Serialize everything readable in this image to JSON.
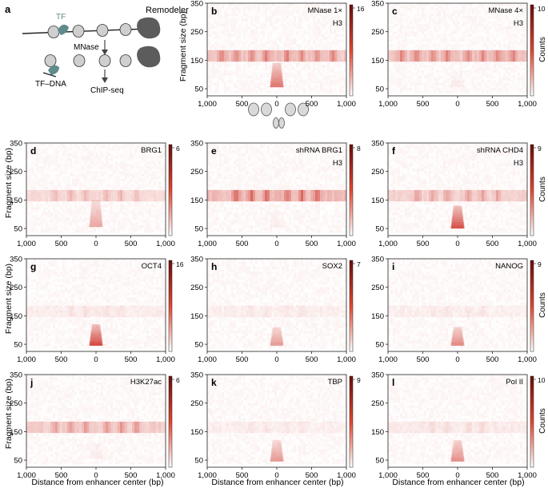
{
  "figure": {
    "x_axis_label": "Distance from enhancer center (bp)",
    "y_axis_label": "Fragment size (bp)",
    "colorbar_label": "Counts",
    "heat_color": "#cc2a1e",
    "dark_color": "#6b0d0a",
    "schematic_fill": "#d9d9d9",
    "tf_color": "#5f8b8b"
  },
  "schematic": {
    "panel_label": "a",
    "tf_label": "TF",
    "remodeler_label": "Remodeler",
    "mnase_label": "MNase",
    "tf_dna_label": "TF–DNA",
    "chipseq_label": "ChIP-seq"
  },
  "chart_data": [
    {
      "id": "b",
      "type": "heatmap",
      "panel_label": "b",
      "title": "MNase 1×",
      "subtitle": "H3",
      "colorbar_max": "16",
      "show_counts_label": false,
      "xlim": [
        -1000,
        1000
      ],
      "ylim": [
        25,
        350
      ],
      "xticks": [
        "1,000",
        "500",
        "0",
        "500",
        "1,000"
      ],
      "yticks": [
        "50",
        "150",
        "250",
        "350"
      ],
      "band_intensity": 0.55,
      "nucleosome_positions": [
        -800,
        -580,
        -360,
        -150,
        150,
        360,
        580,
        800
      ],
      "center_intensity": 0.75,
      "center_size_range": [
        55,
        140
      ]
    },
    {
      "id": "c",
      "type": "heatmap",
      "panel_label": "c",
      "title": "MNase 4×",
      "subtitle": "H3",
      "colorbar_max": "10",
      "show_counts_label": true,
      "xlim": [
        -1000,
        1000
      ],
      "ylim": [
        25,
        350
      ],
      "xticks": [
        "1,000",
        "500",
        "0",
        "500",
        "1,000"
      ],
      "yticks": [
        "50",
        "150",
        "250",
        "350"
      ],
      "band_intensity": 0.55,
      "nucleosome_positions": [
        -800,
        -580,
        -360,
        -150,
        150,
        360,
        580,
        800
      ],
      "center_intensity": 0.08,
      "center_size_range": [
        55,
        110
      ]
    },
    {
      "id": "d",
      "type": "heatmap",
      "panel_label": "d",
      "title": "BRG1",
      "subtitle": "",
      "colorbar_max": "6",
      "show_counts_label": false,
      "xlim": [
        -1000,
        1000
      ],
      "ylim": [
        25,
        350
      ],
      "xticks": [
        "1,000",
        "500",
        "0",
        "500",
        "1,000"
      ],
      "yticks": [
        "50",
        "150",
        "250",
        "350"
      ],
      "band_intensity": 0.3,
      "nucleosome_positions": [
        -580,
        -360,
        -150,
        150,
        360,
        580
      ],
      "center_intensity": 0.45,
      "center_size_range": [
        55,
        150
      ]
    },
    {
      "id": "e",
      "type": "heatmap",
      "panel_label": "e",
      "title": "shRNA BRG1",
      "subtitle": "H3",
      "colorbar_max": "8",
      "show_counts_label": false,
      "xlim": [
        -1000,
        1000
      ],
      "ylim": [
        25,
        350
      ],
      "xticks": [
        "1,000",
        "500",
        "0",
        "500",
        "1,000"
      ],
      "yticks": [
        "50",
        "150",
        "250",
        "350"
      ],
      "band_intensity": 0.65,
      "nucleosome_positions": [
        -580,
        -360,
        -150,
        150,
        360,
        580
      ],
      "center_intensity": 0.06,
      "center_size_range": [
        55,
        110
      ]
    },
    {
      "id": "f",
      "type": "heatmap",
      "panel_label": "f",
      "title": "shRNA CHD4",
      "subtitle": "H3",
      "colorbar_max": "9",
      "show_counts_label": true,
      "xlim": [
        -1000,
        1000
      ],
      "ylim": [
        25,
        350
      ],
      "xticks": [
        "1,000",
        "500",
        "0",
        "500",
        "1,000"
      ],
      "yticks": [
        "50",
        "150",
        "250",
        "350"
      ],
      "band_intensity": 0.4,
      "nucleosome_positions": [
        -580,
        -360,
        -150,
        150,
        360,
        580
      ],
      "center_intensity": 0.95,
      "center_size_range": [
        50,
        130
      ]
    },
    {
      "id": "g",
      "type": "heatmap",
      "panel_label": "g",
      "title": "OCT4",
      "subtitle": "",
      "colorbar_max": "16",
      "show_counts_label": false,
      "xlim": [
        -1000,
        1000
      ],
      "ylim": [
        25,
        350
      ],
      "xticks": [
        "1,000",
        "500",
        "0",
        "500",
        "1,000"
      ],
      "yticks": [
        "50",
        "150",
        "250",
        "350"
      ],
      "band_intensity": 0.12,
      "nucleosome_positions": [
        -360,
        -150,
        150,
        360
      ],
      "center_intensity": 1.0,
      "center_size_range": [
        45,
        120
      ]
    },
    {
      "id": "h",
      "type": "heatmap",
      "panel_label": "h",
      "title": "SOX2",
      "subtitle": "",
      "colorbar_max": "7",
      "show_counts_label": false,
      "xlim": [
        -1000,
        1000
      ],
      "ylim": [
        25,
        350
      ],
      "xticks": [
        "1,000",
        "500",
        "0",
        "500",
        "1,000"
      ],
      "yticks": [
        "50",
        "150",
        "250",
        "350"
      ],
      "band_intensity": 0.1,
      "nucleosome_positions": [
        -360,
        -150,
        150,
        360
      ],
      "center_intensity": 0.55,
      "center_size_range": [
        45,
        110
      ]
    },
    {
      "id": "i",
      "type": "heatmap",
      "panel_label": "i",
      "title": "NANOG",
      "subtitle": "",
      "colorbar_max": "9",
      "show_counts_label": true,
      "xlim": [
        -1000,
        1000
      ],
      "ylim": [
        25,
        350
      ],
      "xticks": [
        "1,000",
        "500",
        "0",
        "500",
        "1,000"
      ],
      "yticks": [
        "50",
        "150",
        "250",
        "350"
      ],
      "band_intensity": 0.1,
      "nucleosome_positions": [
        -360,
        -150,
        150,
        360
      ],
      "center_intensity": 0.65,
      "center_size_range": [
        45,
        110
      ]
    },
    {
      "id": "j",
      "type": "heatmap",
      "panel_label": "j",
      "title": "H3K27ac",
      "subtitle": "",
      "colorbar_max": "6",
      "show_counts_label": false,
      "xlim": [
        -1000,
        1000
      ],
      "ylim": [
        25,
        350
      ],
      "xticks": [
        "1,000",
        "500",
        "0",
        "500",
        "1,000"
      ],
      "yticks": [
        "50",
        "150",
        "250",
        "350"
      ],
      "band_intensity": 0.45,
      "nucleosome_positions": [
        -580,
        -360,
        -150,
        150,
        360,
        580
      ],
      "center_intensity": 0.08,
      "center_size_range": [
        55,
        110
      ]
    },
    {
      "id": "k",
      "type": "heatmap",
      "panel_label": "k",
      "title": "TBP",
      "subtitle": "",
      "colorbar_max": "9",
      "show_counts_label": false,
      "xlim": [
        -1000,
        1000
      ],
      "ylim": [
        25,
        350
      ],
      "xticks": [
        "1,000",
        "500",
        "0",
        "500",
        "1,000"
      ],
      "yticks": [
        "50",
        "150",
        "250",
        "350"
      ],
      "band_intensity": 0.1,
      "nucleosome_positions": [
        -360,
        -150,
        150,
        360
      ],
      "center_intensity": 0.55,
      "center_size_range": [
        45,
        120
      ]
    },
    {
      "id": "l",
      "type": "heatmap",
      "panel_label": "l",
      "title": "Pol II",
      "subtitle": "",
      "colorbar_max": "10",
      "show_counts_label": true,
      "xlim": [
        -1000,
        1000
      ],
      "ylim": [
        25,
        350
      ],
      "xticks": [
        "1,000",
        "500",
        "0",
        "500",
        "1,000"
      ],
      "yticks": [
        "50",
        "150",
        "250",
        "350"
      ],
      "band_intensity": 0.15,
      "nucleosome_positions": [
        -360,
        -150,
        150,
        360
      ],
      "center_intensity": 0.6,
      "center_size_range": [
        45,
        120
      ]
    }
  ]
}
